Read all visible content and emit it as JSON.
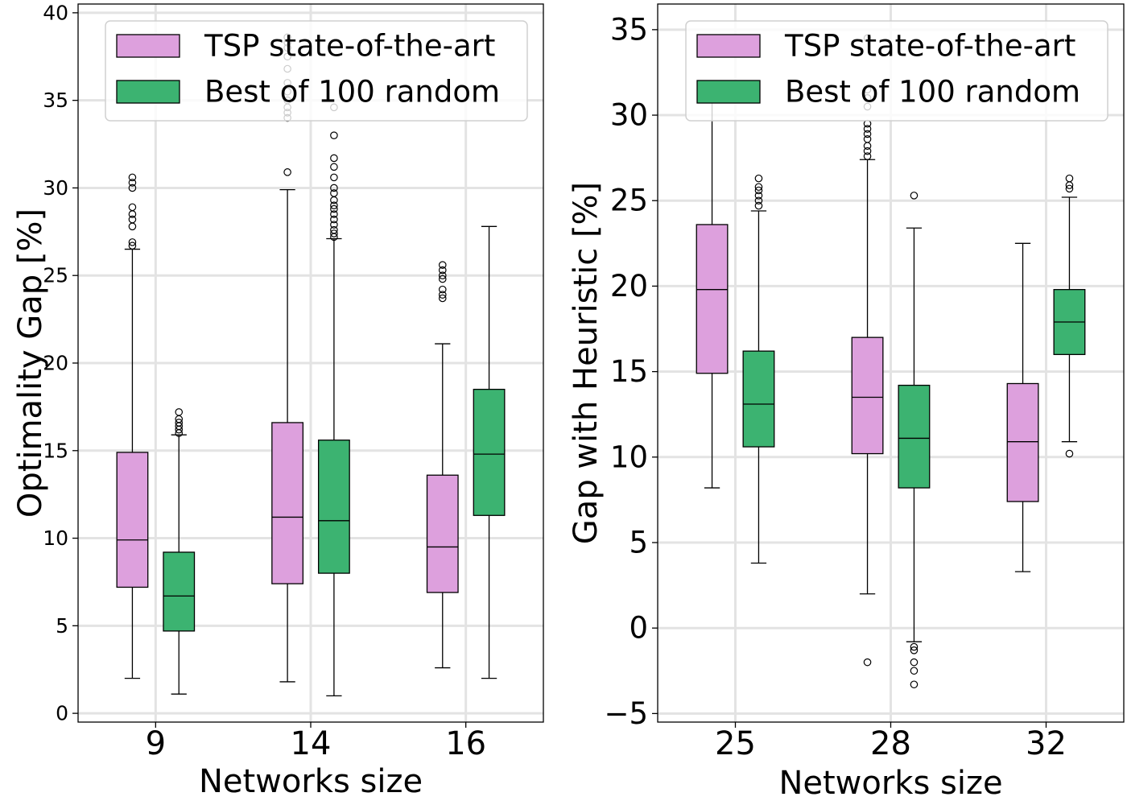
{
  "chart_data": [
    {
      "type": "box",
      "xlabel": "Networks size",
      "ylabel": "Optimality Gap [%]",
      "ylim": [
        -0.5,
        40.5
      ],
      "yticks": [
        0,
        5,
        10,
        15,
        20,
        25,
        30,
        35,
        40
      ],
      "grid": true,
      "legend_position": "top-right",
      "categories": [
        "9",
        "14",
        "16"
      ],
      "series": [
        {
          "name": "TSP state-of-the-art",
          "color": "#dda0dd",
          "boxes": [
            {
              "whislo": 2.0,
              "q1": 7.2,
              "med": 9.9,
              "q3": 14.9,
              "whishi": 26.5,
              "fliers": [
                26.7,
                26.9,
                27.8,
                28.2,
                28.5,
                28.9,
                30.0,
                30.3,
                30.6
              ]
            },
            {
              "whislo": 1.8,
              "q1": 7.4,
              "med": 11.2,
              "q3": 16.6,
              "whishi": 29.9,
              "fliers": [
                30.9,
                34.0,
                34.3,
                34.6,
                35.0,
                35.5,
                36.0,
                36.8,
                37.5,
                38.0,
                38.3,
                38.6
              ]
            },
            {
              "whislo": 2.6,
              "q1": 6.9,
              "med": 9.5,
              "q3": 13.6,
              "whishi": 21.1,
              "fliers": [
                23.7,
                23.9,
                24.2,
                24.8,
                25.0,
                25.3,
                25.6
              ]
            }
          ]
        },
        {
          "name": "Best of 100 random",
          "color": "#3cb371",
          "boxes": [
            {
              "whislo": 1.1,
              "q1": 4.7,
              "med": 6.7,
              "q3": 9.2,
              "whishi": 15.9,
              "fliers": [
                16.0,
                16.2,
                16.4,
                16.6,
                16.8,
                17.2
              ]
            },
            {
              "whislo": 1.0,
              "q1": 8.0,
              "med": 11.0,
              "q3": 15.6,
              "whishi": 27.1,
              "fliers": [
                27.2,
                27.4,
                27.6,
                27.9,
                28.2,
                28.5,
                28.8,
                29.0,
                29.3,
                29.7,
                30.0,
                30.6,
                31.2,
                31.7,
                33.0,
                34.6
              ]
            },
            {
              "whislo": 2.0,
              "q1": 11.3,
              "med": 14.8,
              "q3": 18.5,
              "whishi": 27.8,
              "fliers": []
            }
          ]
        }
      ]
    },
    {
      "type": "box",
      "xlabel": "Networks size",
      "ylabel": "Gap with Heuristic [%]",
      "ylim": [
        -5.5,
        36.5
      ],
      "yticks": [
        -5,
        0,
        5,
        10,
        15,
        20,
        25,
        30,
        35
      ],
      "ytick_labels": [
        "−5",
        "0",
        "5",
        "10",
        "15",
        "20",
        "25",
        "30",
        "35"
      ],
      "grid": true,
      "legend_position": "top-right",
      "categories": [
        "25",
        "28",
        "32"
      ],
      "series": [
        {
          "name": "TSP state-of-the-art",
          "color": "#dda0dd",
          "boxes": [
            {
              "whislo": 8.2,
              "q1": 14.9,
              "med": 19.8,
              "q3": 23.6,
              "whishi": 31.7,
              "fliers": []
            },
            {
              "whislo": 2.0,
              "q1": 10.2,
              "med": 13.5,
              "q3": 17.0,
              "whishi": 27.4,
              "fliers": [
                -2.0,
                27.6,
                27.9,
                28.2,
                28.6,
                28.9,
                29.2,
                29.5,
                30.5,
                31.0,
                31.5,
                34.5
              ]
            },
            {
              "whislo": 3.3,
              "q1": 7.4,
              "med": 10.9,
              "q3": 14.3,
              "whishi": 22.5,
              "fliers": []
            }
          ]
        },
        {
          "name": "Best of 100 random",
          "color": "#3cb371",
          "boxes": [
            {
              "whislo": 3.8,
              "q1": 10.6,
              "med": 13.1,
              "q3": 16.2,
              "whishi": 24.4,
              "fliers": [
                24.7,
                25.0,
                25.3,
                25.6,
                25.8,
                26.3
              ]
            },
            {
              "whislo": -0.8,
              "q1": 8.2,
              "med": 11.1,
              "q3": 14.2,
              "whishi": 23.4,
              "fliers": [
                -1.1,
                -1.3,
                -2.0,
                -2.5,
                -3.3,
                25.3
              ]
            },
            {
              "whislo": 10.9,
              "q1": 16.0,
              "med": 17.9,
              "q3": 19.8,
              "whishi": 25.2,
              "fliers": [
                10.2,
                25.7,
                25.9,
                26.3
              ]
            }
          ]
        }
      ]
    }
  ]
}
